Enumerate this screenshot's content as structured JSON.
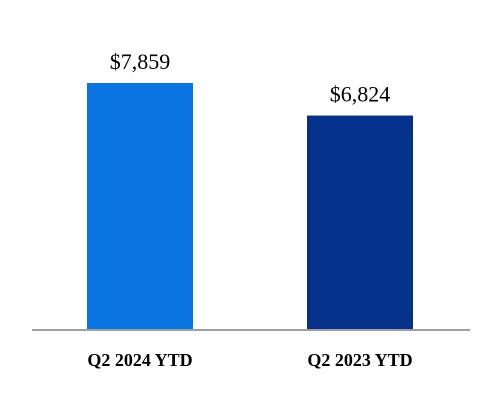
{
  "chart_data": {
    "type": "bar",
    "categories": [
      "Q2 2024 YTD",
      "Q2 2023 YTD"
    ],
    "values": [
      7859,
      6824
    ],
    "value_labels": [
      "$7,859",
      "$6,824"
    ],
    "bar_colors": [
      "#0A75E0",
      "#05318B"
    ],
    "axis_color": "#A0A0A0",
    "ylim": [
      0,
      10500
    ],
    "grid": false,
    "title": "",
    "xlabel": "",
    "ylabel": ""
  }
}
